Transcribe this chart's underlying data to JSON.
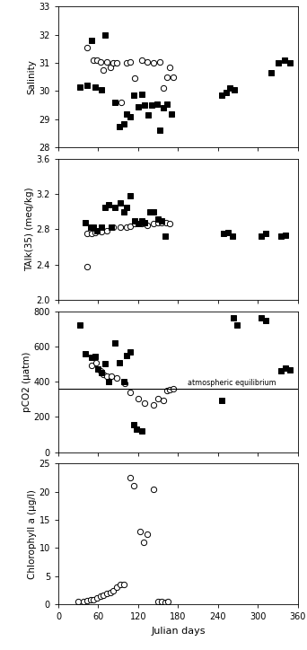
{
  "salinity_open": {
    "x": [
      43,
      53,
      58,
      63,
      68,
      73,
      78,
      83,
      88,
      95,
      103,
      108,
      115,
      125,
      133,
      143,
      153,
      158,
      163,
      168,
      173
    ],
    "y": [
      31.55,
      31.1,
      31.1,
      31.05,
      30.75,
      31.05,
      30.85,
      31.0,
      31.0,
      29.6,
      31.0,
      31.05,
      30.45,
      31.1,
      31.05,
      31.0,
      31.05,
      30.1,
      30.5,
      30.85,
      30.5
    ]
  },
  "salinity_filled": {
    "x": [
      33,
      43,
      50,
      55,
      65,
      70,
      85,
      92,
      98,
      103,
      108,
      113,
      120,
      125,
      130,
      135,
      140,
      148,
      153,
      158,
      163,
      170,
      245,
      252,
      258,
      265,
      320,
      330,
      340,
      348
    ],
    "y": [
      30.15,
      30.2,
      31.8,
      30.15,
      30.05,
      32.0,
      29.6,
      28.75,
      28.85,
      29.2,
      29.1,
      29.85,
      29.45,
      29.9,
      29.5,
      29.15,
      29.5,
      29.55,
      28.6,
      29.4,
      29.55,
      29.2,
      29.85,
      29.95,
      30.1,
      30.05,
      30.65,
      31.0,
      31.1,
      31.0
    ]
  },
  "tAlk_open": {
    "x": [
      43,
      50,
      55,
      65,
      73,
      83,
      93,
      103,
      108,
      115,
      125,
      133,
      143,
      150,
      155,
      162,
      168
    ],
    "y": [
      2.75,
      2.75,
      2.76,
      2.77,
      2.78,
      2.82,
      2.82,
      2.82,
      2.84,
      2.87,
      2.87,
      2.85,
      2.87,
      2.88,
      2.88,
      2.88,
      2.87
    ]
  },
  "tAlk_open_outlier": {
    "x": [
      43
    ],
    "y": [
      2.38
    ]
  },
  "tAlk_filled": {
    "x": [
      40,
      48,
      53,
      58,
      65,
      70,
      75,
      80,
      85,
      93,
      98,
      103,
      108,
      115,
      120,
      125,
      130,
      138,
      143,
      150,
      155,
      160,
      248,
      255,
      262,
      305,
      312,
      335,
      342
    ],
    "y": [
      2.88,
      2.83,
      2.82,
      2.78,
      2.83,
      3.05,
      3.08,
      2.82,
      3.05,
      3.1,
      3.0,
      3.05,
      3.18,
      2.9,
      2.87,
      2.9,
      2.88,
      3.0,
      3.0,
      2.92,
      2.9,
      2.72,
      2.75,
      2.76,
      2.72,
      2.72,
      2.75,
      2.72,
      2.73
    ]
  },
  "pCO2_open": {
    "x": [
      50,
      57,
      63,
      68,
      73,
      80,
      88,
      100,
      108,
      120,
      130,
      143,
      150,
      158,
      163,
      168,
      173
    ],
    "y": [
      490,
      510,
      460,
      440,
      430,
      430,
      420,
      390,
      340,
      305,
      280,
      270,
      305,
      295,
      350,
      355,
      360
    ]
  },
  "pCO2_open_lone": {
    "x": [
      170
    ],
    "y": [
      360
    ]
  },
  "pCO2_filled": {
    "x": [
      33,
      40,
      85,
      92,
      98,
      103,
      108,
      113,
      118,
      125,
      245,
      263,
      268,
      305,
      312,
      335,
      342,
      348
    ],
    "y": [
      720,
      560,
      620,
      510,
      400,
      550,
      570,
      155,
      130,
      120,
      295,
      760,
      720,
      760,
      745,
      460,
      475,
      465
    ]
  },
  "pCO2_filled_cluster": {
    "x": [
      50,
      55,
      60,
      65,
      70,
      75
    ],
    "y": [
      540,
      545,
      470,
      450,
      500,
      400
    ]
  },
  "atm_equilibrium": 360,
  "chlorophyll_open": {
    "x": [
      30,
      38,
      43,
      48,
      53,
      58,
      63,
      68,
      73,
      78,
      83,
      88,
      93,
      98,
      108,
      113,
      123,
      128,
      133,
      143,
      150,
      155,
      160,
      165
    ],
    "y": [
      0.5,
      0.6,
      0.7,
      0.8,
      0.9,
      1.2,
      1.5,
      1.7,
      1.9,
      2.1,
      2.5,
      3.0,
      3.5,
      3.5,
      22.5,
      21.0,
      13.0,
      11.0,
      12.5,
      20.5,
      0.5,
      0.5,
      0.3,
      0.5
    ]
  },
  "ylim_salinity": [
    28,
    33
  ],
  "yticks_salinity": [
    28,
    29,
    30,
    31,
    32,
    33
  ],
  "ylim_tAlk": [
    2.0,
    3.6
  ],
  "yticks_tAlk": [
    2.0,
    2.4,
    2.8,
    3.2,
    3.6
  ],
  "ylim_pCO2": [
    0,
    800
  ],
  "yticks_pCO2": [
    0,
    200,
    400,
    600,
    800
  ],
  "ylim_chlorophyll": [
    0,
    25
  ],
  "yticks_chlorophyll": [
    0,
    5,
    10,
    15,
    20,
    25
  ],
  "xlim": [
    0,
    360
  ],
  "xticks": [
    0,
    60,
    120,
    180,
    240,
    300,
    360
  ],
  "xlabel": "Julian days",
  "ylabel_salinity": "Salinity",
  "ylabel_tAlk": "TAlk(35) (meq/kg)",
  "ylabel_pCO2": "pCO2 (μatm)",
  "ylabel_chlorophyll": "Chlorophyll a (μg/l)",
  "atm_label": "atmospheric equilibrium",
  "open_marker": "o",
  "filled_marker": "s",
  "open_color": "white",
  "filled_color": "black",
  "edge_color": "black",
  "marker_size": 4.5,
  "background_color": "white"
}
